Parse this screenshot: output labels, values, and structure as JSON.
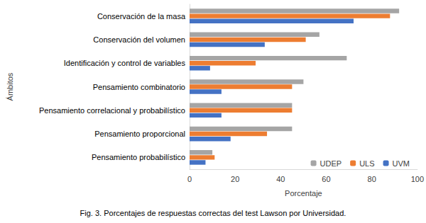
{
  "chart_data": {
    "type": "bar",
    "orientation": "horizontal",
    "title": "Fig. 3. Porcentajes de respuestas correctas del test Lawson por Universidad.",
    "x_label": "Porcentaje",
    "y_label": "Ámbitos",
    "categories": [
      "Conservación de la masa",
      "Conservación del volumen",
      "Identificación y control de variables",
      "Pensamiento combinatorio",
      "Pensamiento correlacional y probabilístico",
      "Pensamiento proporcional",
      "Pensamiento probabilístico"
    ],
    "series": [
      {
        "name": "UDEP",
        "color": "#a5a5a5",
        "values": [
          92,
          57,
          69,
          50,
          45,
          45,
          10
        ]
      },
      {
        "name": "ULS",
        "color": "#ed7d31",
        "values": [
          88,
          51,
          29,
          45,
          45,
          34,
          11
        ]
      },
      {
        "name": "UVM",
        "color": "#4472c4",
        "values": [
          72,
          33,
          9,
          14,
          14,
          18,
          7
        ]
      }
    ],
    "xlim": [
      0,
      100
    ],
    "xticks": [
      0,
      20,
      40,
      60,
      80,
      100
    ],
    "grid": false,
    "legend": "lower right"
  }
}
